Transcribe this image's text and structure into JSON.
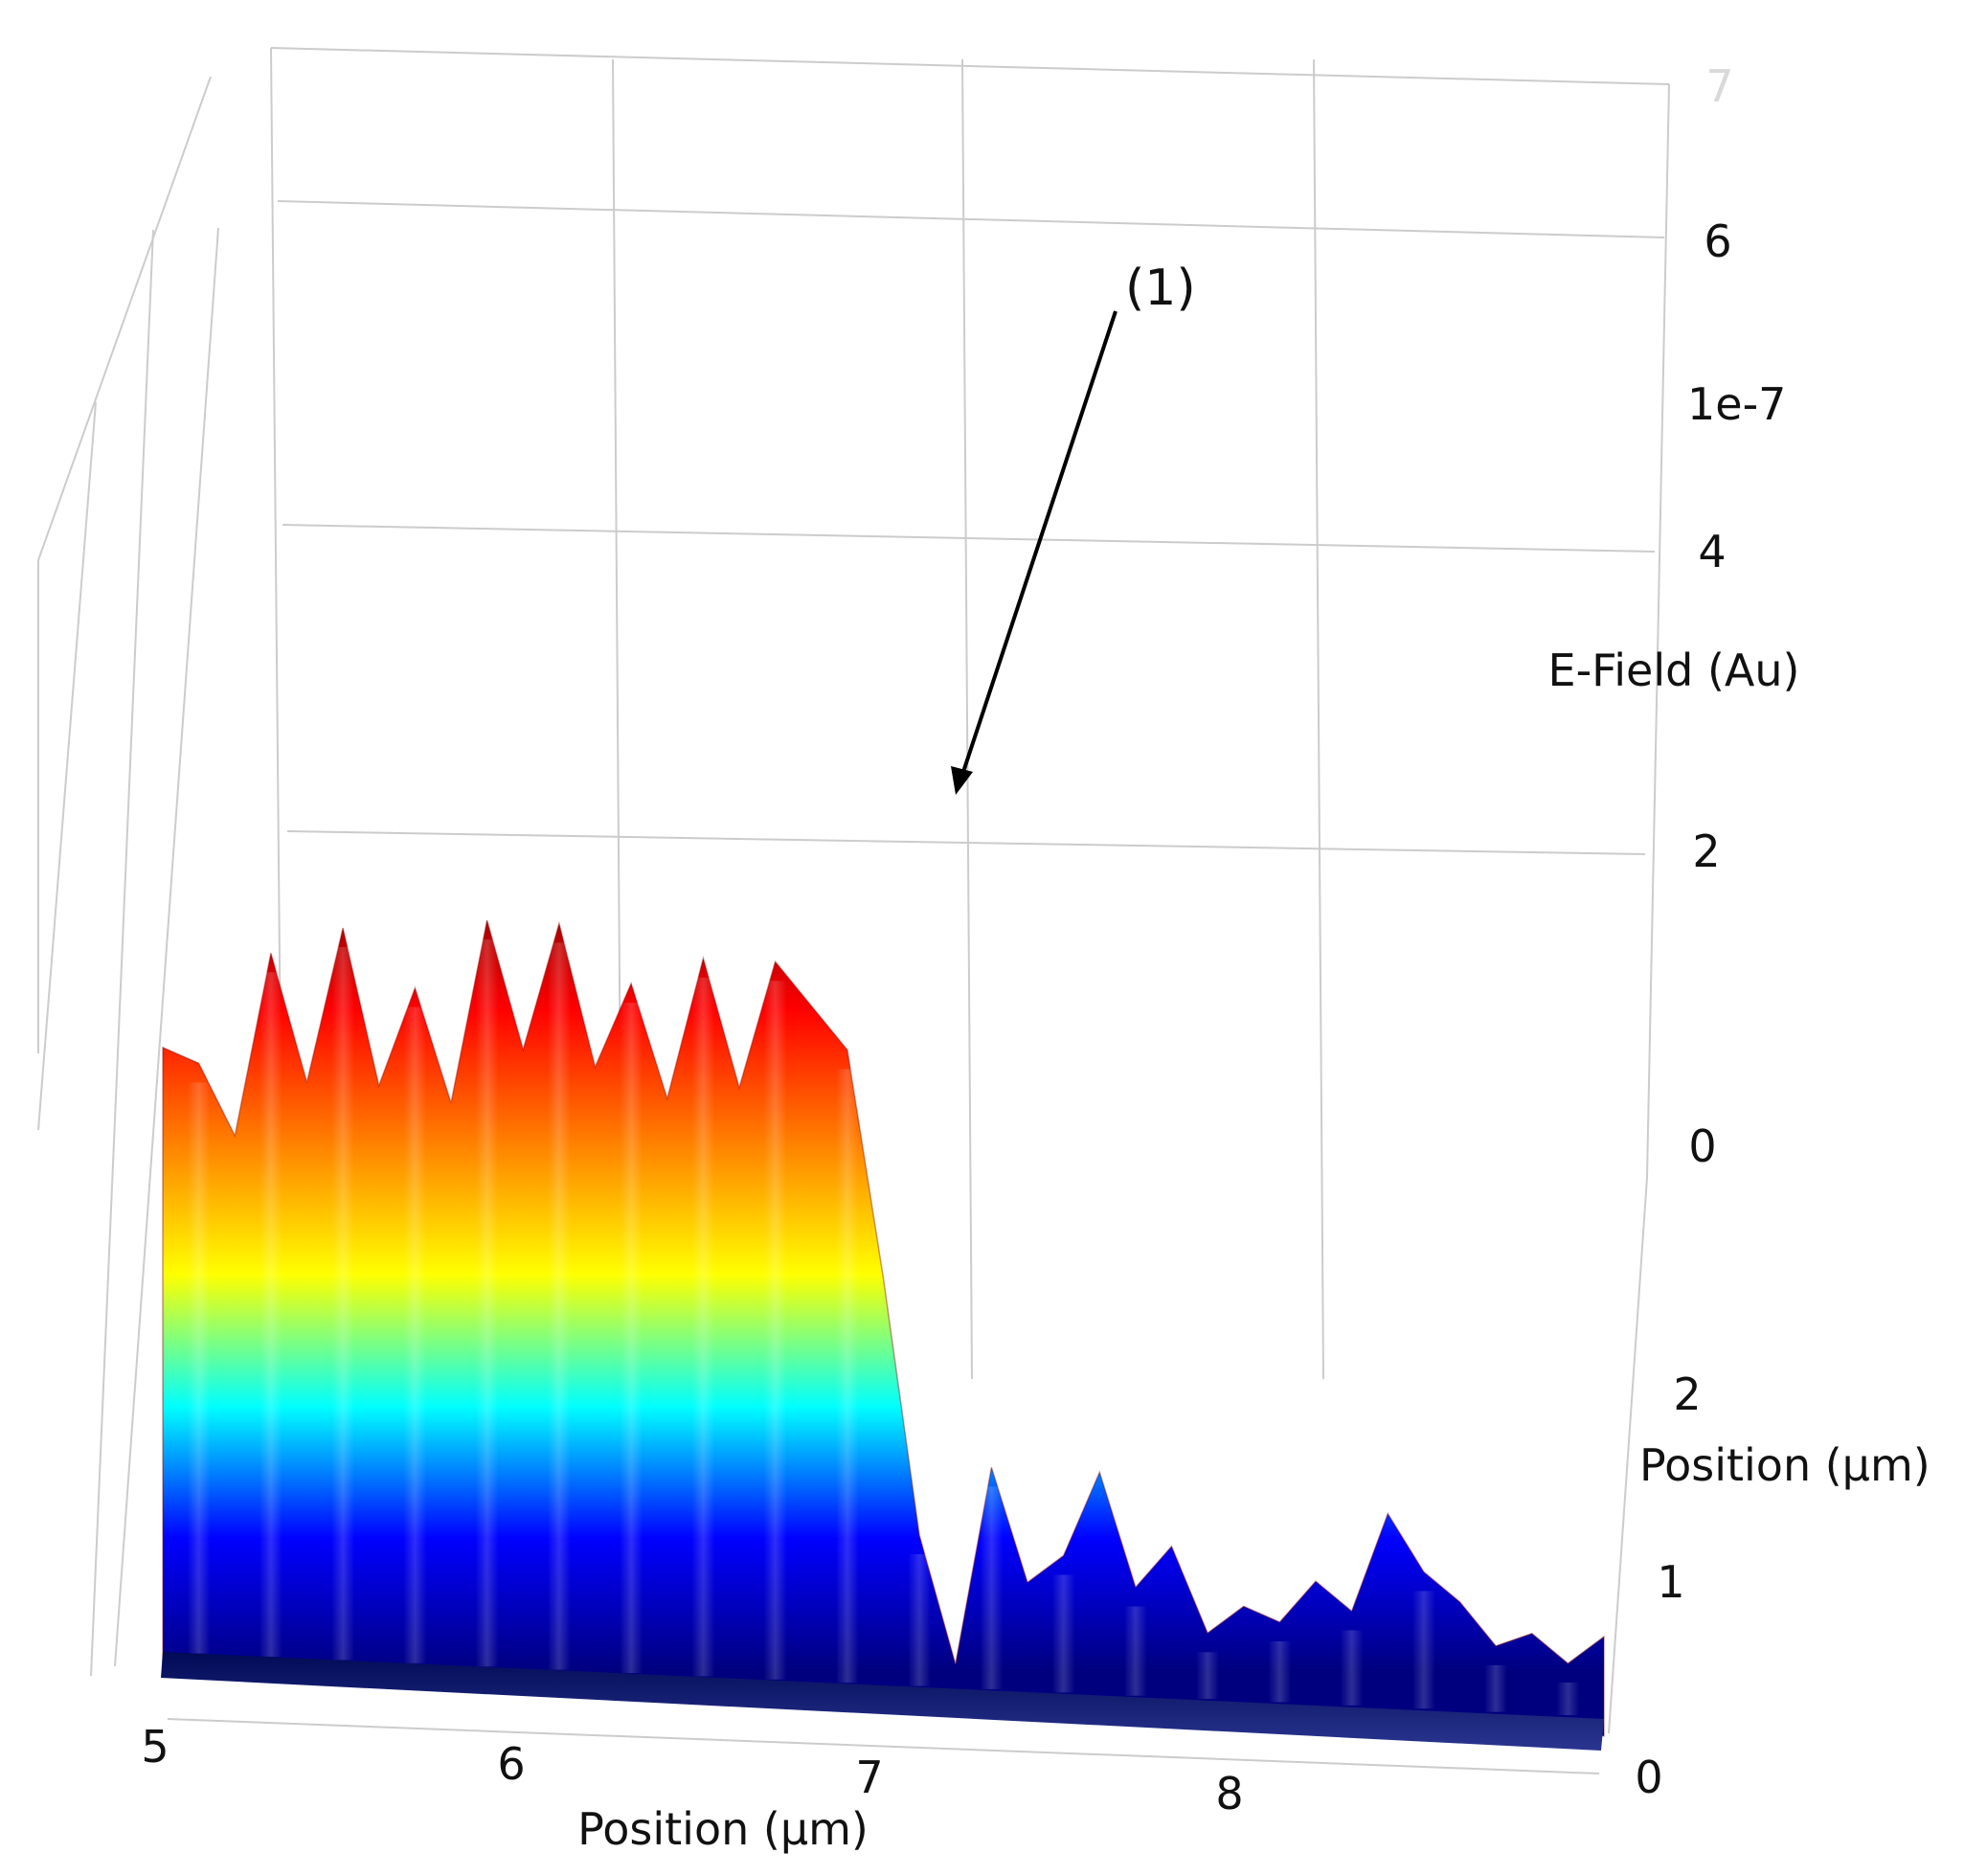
{
  "chart_data": {
    "type": "surface",
    "title": "",
    "x_axis": {
      "label": "Position (µm)",
      "ticks": [
        "5",
        "6",
        "7",
        "8"
      ],
      "range": [
        5,
        9
      ]
    },
    "y_axis": {
      "label": "Position (µm)",
      "ticks": [
        "0",
        "1",
        "2"
      ],
      "range": [
        0,
        3
      ]
    },
    "z_axis": {
      "label": "E-Field (Au)",
      "ticks": [
        "0",
        "2",
        "4",
        "6",
        "7"
      ],
      "multiplier": "1e-7",
      "range": [
        0,
        7
      ]
    },
    "colormap": "jet",
    "colormap_stops": [
      "#00007f",
      "#0000ff",
      "#00ffff",
      "#ffff00",
      "#ff7f00",
      "#ff0000",
      "#7f0000"
    ],
    "grid": true,
    "annotation": {
      "label": "(1)",
      "target_x": 7.25,
      "target_z": 2.5
    },
    "surface_profile": {
      "x": [
        5.0,
        5.1,
        5.2,
        5.3,
        5.4,
        5.5,
        5.6,
        5.7,
        5.8,
        5.9,
        6.0,
        6.1,
        6.2,
        6.3,
        6.4,
        6.5,
        6.6,
        6.7,
        6.8,
        6.9,
        7.0,
        7.1,
        7.2,
        7.3,
        7.4,
        7.5,
        7.6,
        7.7,
        7.8,
        7.9,
        8.0,
        8.1,
        8.2,
        8.3,
        8.4,
        8.5,
        8.6,
        8.7,
        8.8,
        8.9,
        9.0
      ],
      "z_peak": [
        4.4,
        4.3,
        3.8,
        5.1,
        4.2,
        5.3,
        4.2,
        4.9,
        4.1,
        5.4,
        4.5,
        5.4,
        4.4,
        5.0,
        4.2,
        5.2,
        4.3,
        5.2,
        4.9,
        4.6,
        3.0,
        1.2,
        0.3,
        1.7,
        0.9,
        1.1,
        1.7,
        0.9,
        1.2,
        0.6,
        0.8,
        0.7,
        1.0,
        0.8,
        1.5,
        1.1,
        0.9,
        0.6,
        0.7,
        0.5,
        0.7
      ]
    }
  }
}
